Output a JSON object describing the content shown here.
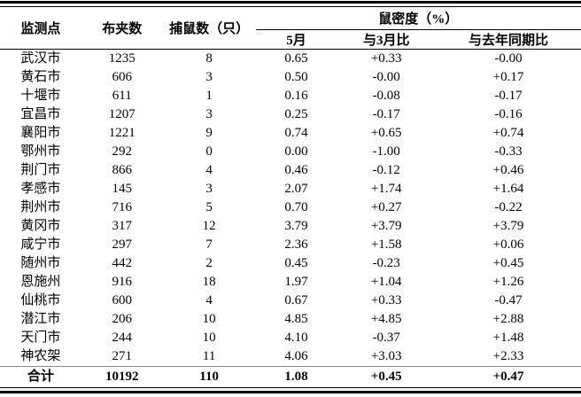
{
  "table": {
    "columns": {
      "site": "监测点",
      "traps": "布夹数",
      "caught": "捕鼠数（只）",
      "density_group": "鼠密度（%）",
      "sub": {
        "may": "5月",
        "vs_march": "与3月比",
        "vs_last_year": "与去年同期比"
      }
    },
    "rows": [
      [
        "武汉市",
        "1235",
        "8",
        "0.65",
        "+0.33",
        "-0.00"
      ],
      [
        "黄石市",
        "606",
        "3",
        "0.50",
        "-0.00",
        "+0.17"
      ],
      [
        "十堰市",
        "611",
        "1",
        "0.16",
        "-0.08",
        "-0.17"
      ],
      [
        "宜昌市",
        "1207",
        "3",
        "0.25",
        "-0.17",
        "-0.16"
      ],
      [
        "襄阳市",
        "1221",
        "9",
        "0.74",
        "+0.65",
        "+0.74"
      ],
      [
        "鄂州市",
        "292",
        "0",
        "0.00",
        "-1.00",
        "-0.33"
      ],
      [
        "荆门市",
        "866",
        "4",
        "0.46",
        "-0.12",
        "+0.46"
      ],
      [
        "孝感市",
        "145",
        "3",
        "2.07",
        "+1.74",
        "+1.64"
      ],
      [
        "荆州市",
        "716",
        "5",
        "0.70",
        "+0.27",
        "-0.22"
      ],
      [
        "黄冈市",
        "317",
        "12",
        "3.79",
        "+3.79",
        "+3.79"
      ],
      [
        "咸宁市",
        "297",
        "7",
        "2.36",
        "+1.58",
        "+0.06"
      ],
      [
        "随州市",
        "442",
        "2",
        "0.45",
        "-0.23",
        "+0.45"
      ],
      [
        "恩施州",
        "916",
        "18",
        "1.97",
        "+1.04",
        "+1.26"
      ],
      [
        "仙桃市",
        "600",
        "4",
        "0.67",
        "+0.33",
        "-0.47"
      ],
      [
        "潜江市",
        "206",
        "10",
        "4.85",
        "+4.85",
        "+2.88"
      ],
      [
        "天门市",
        "244",
        "10",
        "4.10",
        "-0.37",
        "+1.48"
      ],
      [
        "神农架",
        "271",
        "11",
        "4.06",
        "+3.03",
        "+2.33"
      ]
    ],
    "total": {
      "label": "合计",
      "traps": "10192",
      "caught": "110",
      "may": "1.08",
      "vs_march": "+0.45",
      "vs_last_year": "+0.47"
    }
  },
  "colors": {
    "text": "#000000",
    "rule": "#000000",
    "pre_total_rule": "#8a8a8a",
    "background": "#ffffff"
  }
}
